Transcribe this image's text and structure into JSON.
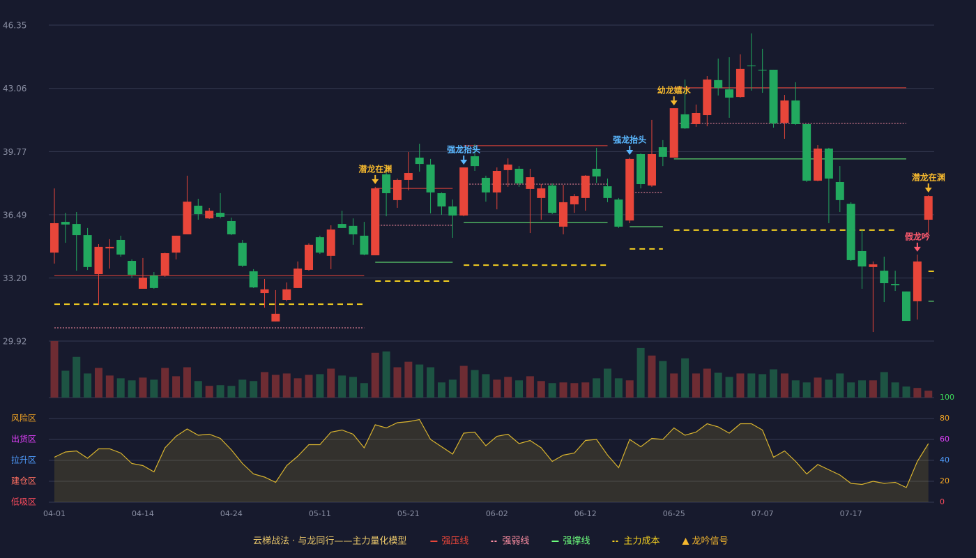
{
  "chart_data": {
    "type": "candlestick",
    "title": "云梯战法 · 与龙同行——主力量化模型",
    "categories": [
      "04-01",
      null,
      null,
      null,
      null,
      null,
      null,
      null,
      "04-14",
      null,
      null,
      null,
      null,
      null,
      null,
      null,
      "04-24",
      null,
      null,
      null,
      null,
      null,
      null,
      null,
      "05-11",
      null,
      null,
      null,
      null,
      null,
      null,
      null,
      "05-21",
      null,
      null,
      null,
      null,
      null,
      null,
      null,
      "06-02",
      null,
      null,
      null,
      null,
      null,
      null,
      null,
      "06-12",
      null,
      null,
      null,
      null,
      null,
      null,
      null,
      "06-25",
      null,
      null,
      null,
      null,
      null,
      null,
      null,
      "07-07",
      null,
      null,
      null,
      null,
      null,
      null,
      null,
      "07-17",
      null,
      null,
      null,
      null,
      null,
      null,
      null
    ],
    "open": [
      34.52,
      36.12,
      36.01,
      35.43,
      33.4,
      34.74,
      35.18,
      34.09,
      32.64,
      33.33,
      33.33,
      34.52,
      35.47,
      36.96,
      36.3,
      36.59,
      36.16,
      35.03,
      33.55,
      32.42,
      30.94,
      32.06,
      32.68,
      33.62,
      35.32,
      34.35,
      36.01,
      35.91,
      35.4,
      34.38,
      38.59,
      37.25,
      38.3,
      39.46,
      39.1,
      37.61,
      36.92,
      36.45,
      39.53,
      38.41,
      37.65,
      38.81,
      38.88,
      37.83,
      37.36,
      38.01,
      35.87,
      37.03,
      37.36,
      38.88,
      37.97,
      37.28,
      36.19,
      39.64,
      38.01,
      40.0,
      39.46,
      41.71,
      41.2,
      41.67,
      43.49,
      43.01,
      42.61,
      44.25,
      44.03,
      44.03,
      41.27,
      42.43,
      41.2,
      38.26,
      39.93,
      38.19,
      37.06,
      34.6,
      33.77,
      33.58,
      32.89,
      32.5,
      31.99,
      36.23
    ],
    "close": [
      36.05,
      35.98,
      35.43,
      33.77,
      34.82,
      34.82,
      34.42,
      33.37,
      33.22,
      32.68,
      34.49,
      35.4,
      37.17,
      36.52,
      36.7,
      36.38,
      35.47,
      33.84,
      32.71,
      32.61,
      31.34,
      32.61,
      33.69,
      34.93,
      34.52,
      35.72,
      35.8,
      35.47,
      34.42,
      37.86,
      37.61,
      38.3,
      38.66,
      39.13,
      37.65,
      36.92,
      36.45,
      38.95,
      39.02,
      37.65,
      38.77,
      39.1,
      38.12,
      38.44,
      37.86,
      36.59,
      37.14,
      37.46,
      38.52,
      38.48,
      37.36,
      35.87,
      39.39,
      38.08,
      39.64,
      39.5,
      42.03,
      40.98,
      41.78,
      43.52,
      43.09,
      42.58,
      44.07,
      44.21,
      43.99,
      41.24,
      42.43,
      41.2,
      38.26,
      39.93,
      38.37,
      37.25,
      34.13,
      33.8,
      33.91,
      32.93,
      32.82,
      30.97,
      34.06,
      37.46
    ],
    "low": [
      33.95,
      35.03,
      33.58,
      33.62,
      31.81,
      33.69,
      34.31,
      33.22,
      32.64,
      32.64,
      33.26,
      34.17,
      35.47,
      36.23,
      36.27,
      36.3,
      35.43,
      33.77,
      32.68,
      31.66,
      30.94,
      31.99,
      32.68,
      33.58,
      34.45,
      33.66,
      35.8,
      34.93,
      34.38,
      34.38,
      36.41,
      36.85,
      37.76,
      38.73,
      36.56,
      36.49,
      35.29,
      36.41,
      38.77,
      37.17,
      36.77,
      37.94,
      37.94,
      35.54,
      36.23,
      36.52,
      35.47,
      36.59,
      36.7,
      38.15,
      37.14,
      35.8,
      36.05,
      37.86,
      37.94,
      39.02,
      39.46,
      40.95,
      41.06,
      41.09,
      42.69,
      41.53,
      42.58,
      42.94,
      42.83,
      41.02,
      40.44,
      41.16,
      38.19,
      38.23,
      36.05,
      36.63,
      34.09,
      32.64,
      30.39,
      31.95,
      32.53,
      30.97,
      31.04,
      35.51
    ],
    "high": [
      37.86,
      36.59,
      36.63,
      35.8,
      34.96,
      35.22,
      35.4,
      34.17,
      34.24,
      33.51,
      34.52,
      35.4,
      38.52,
      37.32,
      36.85,
      37.61,
      36.34,
      35.18,
      33.66,
      33.15,
      32.57,
      32.97,
      34.06,
      35.0,
      35.4,
      35.94,
      36.7,
      36.3,
      36.12,
      37.94,
      38.99,
      38.37,
      39.75,
      40.18,
      39.39,
      37.65,
      37.28,
      38.95,
      40.15,
      38.52,
      38.95,
      39.42,
      39.02,
      38.88,
      38.08,
      38.12,
      38.04,
      37.57,
      38.55,
      39.97,
      38.37,
      37.36,
      39.46,
      39.68,
      41.42,
      40.37,
      42.03,
      43.52,
      42.22,
      43.7,
      44.61,
      44.68,
      44.83,
      45.92,
      45.12,
      44.03,
      42.72,
      43.38,
      41.2,
      40.11,
      39.97,
      39.02,
      37.14,
      35.69,
      34.06,
      34.31,
      33.58,
      32.5,
      34.42,
      37.5
    ],
    "volume": [
      82,
      39,
      59,
      35,
      43,
      32,
      28,
      25,
      29,
      26,
      43,
      31,
      44,
      24,
      17,
      18,
      17,
      26,
      24,
      37,
      33,
      35,
      28,
      33,
      34,
      42,
      32,
      30,
      21,
      65,
      67,
      44,
      52,
      48,
      44,
      22,
      26,
      46,
      40,
      34,
      26,
      30,
      25,
      31,
      24,
      21,
      22,
      21,
      22,
      28,
      42,
      28,
      25,
      72,
      61,
      53,
      35,
      57,
      35,
      42,
      36,
      30,
      35,
      35,
      34,
      41,
      35,
      25,
      22,
      29,
      26,
      35,
      22,
      25,
      25,
      37,
      22,
      16,
      14,
      10
    ],
    "up_color": "#e8463a",
    "down_color": "#22a95f",
    "volume_up_color": "#6e2c33",
    "volume_down_color": "#1d5443",
    "ylim": [
      29.92,
      46.35
    ],
    "yticks": [
      29.92,
      {
        "value": 33.2,
        "label": "33.20"
      },
      36.49,
      39.77,
      43.06,
      46.35
    ],
    "grid": true,
    "levels": [
      {
        "name": "强压线",
        "color": "#e8463a",
        "style": "solid",
        "segments": [
          {
            "from": 0,
            "to": 28,
            "value": 33.33
          },
          {
            "from": 29,
            "to": 36,
            "value": 37.86
          },
          {
            "from": 37,
            "to": 50,
            "value": 40.08
          },
          {
            "from": 56,
            "to": 77,
            "value": 43.09
          }
        ]
      },
      {
        "name": "强弱线",
        "color": "#ff8fa3",
        "style": "dotted",
        "segments": [
          {
            "from": 0,
            "to": 28,
            "value": 30.61
          },
          {
            "from": 29,
            "to": 36,
            "value": 35.94
          },
          {
            "from": 37,
            "to": 50,
            "value": 38.08
          },
          {
            "from": 52,
            "to": 55,
            "value": 37.65
          },
          {
            "from": 56,
            "to": 77,
            "value": 41.24
          }
        ]
      },
      {
        "name": "强撑线",
        "color": "#6dff7d",
        "style": "solid",
        "segments": [
          {
            "from": 29,
            "to": 36,
            "value": 34.02
          },
          {
            "from": 37,
            "to": 50,
            "value": 36.09
          },
          {
            "from": 52,
            "to": 55,
            "value": 35.87
          },
          {
            "from": 56,
            "to": 77,
            "value": 39.39
          },
          {
            "from": 79,
            "to": 79,
            "value": 31.99
          }
        ]
      },
      {
        "name": "主力成本",
        "color": "#f5d020",
        "style": "dashed",
        "segments": [
          {
            "from": 0,
            "to": 28,
            "value": 31.84
          },
          {
            "from": 29,
            "to": 36,
            "value": 33.04
          },
          {
            "from": 37,
            "to": 50,
            "value": 33.87
          },
          {
            "from": 52,
            "to": 55,
            "value": 34.71
          },
          {
            "from": 56,
            "to": 76,
            "value": 35.69
          },
          {
            "from": 79,
            "to": 79,
            "value": 33.55
          }
        ]
      }
    ],
    "signal_legend": "龙吟信号",
    "signal_legend_color": "#f5b82e",
    "signals": [
      {
        "index": 29,
        "label": "潜龙在渊",
        "color": "#f5b82e"
      },
      {
        "index": 37,
        "label": "强龙抬头",
        "color": "#5bb8ff"
      },
      {
        "index": 52,
        "label": "强龙抬头",
        "color": "#5bb8ff"
      },
      {
        "index": 56,
        "label": "幼龙嬉水",
        "color": "#f5b82e"
      },
      {
        "index": 78,
        "label": "假龙吟",
        "color": "#ff5a6e"
      },
      {
        "index": 79,
        "label": "潜龙在渊",
        "color": "#f5b82e"
      }
    ],
    "oscillator": {
      "values": [
        43,
        48,
        49,
        42,
        51,
        51,
        47,
        37,
        35,
        29,
        52,
        63,
        70,
        64,
        65,
        61,
        50,
        37,
        27,
        24,
        19,
        35,
        44,
        55,
        55,
        67,
        69,
        65,
        52,
        74,
        71,
        76,
        77,
        79,
        60,
        53,
        46,
        66,
        67,
        54,
        63,
        65,
        56,
        59,
        52,
        39,
        45,
        47,
        59,
        60,
        45,
        33,
        60,
        53,
        61,
        60,
        71,
        64,
        67,
        75,
        72,
        66,
        75,
        75,
        69,
        43,
        49,
        39,
        27,
        36,
        31,
        26,
        18,
        17,
        20,
        18,
        19,
        14,
        39,
        56
      ],
      "color": "#d9b42e",
      "ylim": [
        0,
        100
      ],
      "yticks": [
        0,
        20,
        40,
        60,
        80,
        100
      ],
      "tick_colors": [
        "#ff4d5e",
        "#f5a623",
        "#4f9dff",
        "#e040fb",
        "#f5a623",
        "#3ddc5a"
      ],
      "zone_labels": [
        "低吸区",
        "建仓区",
        "拉升区",
        "出货区",
        "风险区"
      ],
      "zone_colors": [
        "#ff4d5e",
        "#ff6f61",
        "#4f9dff",
        "#e040fb",
        "#f5a623"
      ]
    }
  }
}
